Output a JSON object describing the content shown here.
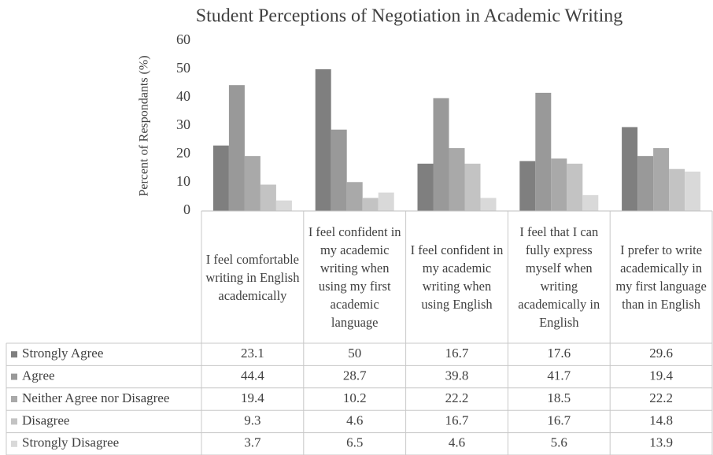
{
  "chart_data": {
    "type": "bar",
    "title": "Student Perceptions of Negotiation in Academic Writing",
    "y_label": "Percent of Respondants (%)",
    "categories": [
      "I feel comfortable writing in English academically",
      "I feel confident in my academic writing when using my first academic language",
      "I feel confident in my academic writing when using English",
      "I feel that I can fully express myself when writing academically in English",
      "I prefer to write academically in my first language than in English"
    ],
    "series": [
      {
        "name": "Strongly Agree",
        "color": "#7f7f7f",
        "values": [
          23.1,
          50,
          16.7,
          17.6,
          29.6
        ]
      },
      {
        "name": "Agree",
        "color": "#999999",
        "values": [
          44.4,
          28.7,
          39.8,
          41.7,
          19.4
        ]
      },
      {
        "name": "Neither Agree nor Disagree",
        "color": "#a9a9a9",
        "values": [
          19.4,
          10.2,
          22.2,
          18.5,
          22.2
        ]
      },
      {
        "name": "Disagree",
        "color": "#c3c3c3",
        "values": [
          9.3,
          4.6,
          16.7,
          16.7,
          14.8
        ]
      },
      {
        "name": "Strongly Disagree",
        "color": "#d9d9d9",
        "values": [
          3.7,
          6.5,
          4.6,
          5.6,
          13.9
        ]
      }
    ],
    "ylim": [
      0,
      60
    ],
    "yticks": [
      0,
      10,
      20,
      30,
      40,
      50,
      60
    ],
    "grid": false
  }
}
